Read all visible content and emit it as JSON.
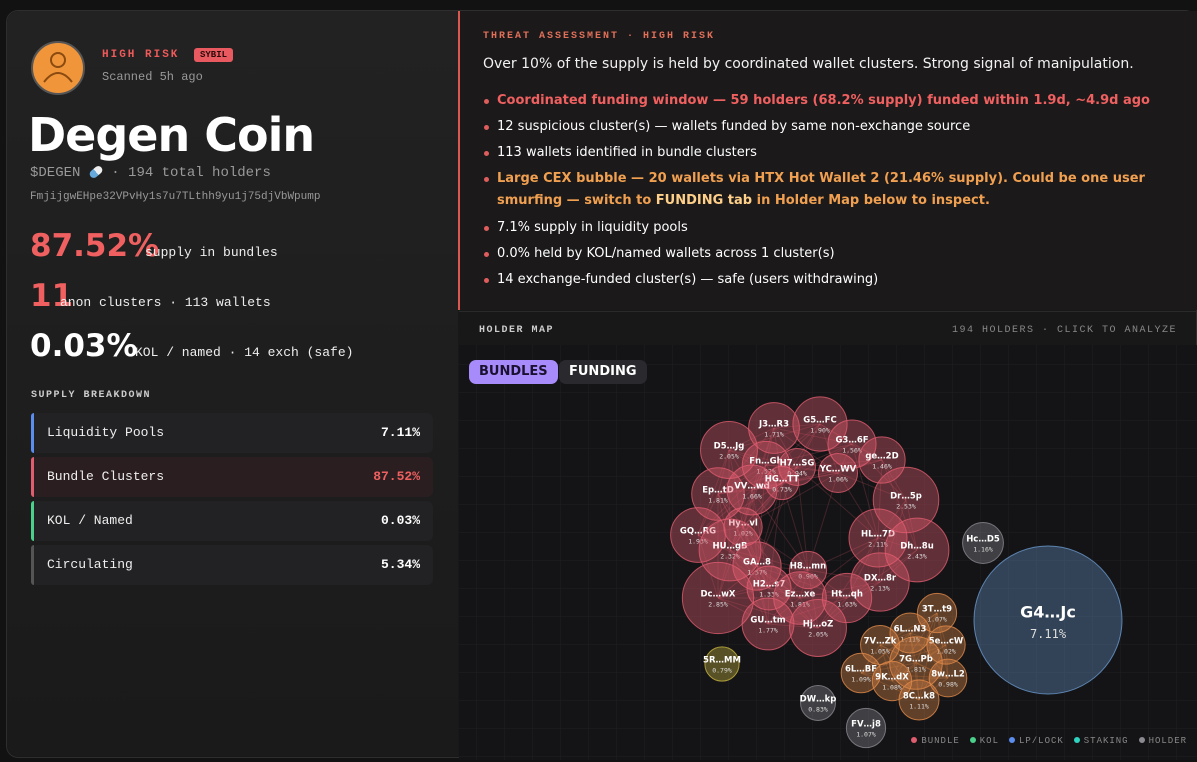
{
  "header": {
    "risk": "HIGH RISK",
    "badge": "SYBIL",
    "scanned": "Scanned 5h ago",
    "title": "Degen Coin",
    "ticker": "$DEGEN",
    "holders": "· 194 total holders",
    "address": "FmjijgwEHpe32VPvHy1s7u7TLthh9yu1j75djVbWpump"
  },
  "stats": [
    {
      "value": "87.52%",
      "label": "supply in bundles",
      "tone": "red"
    },
    {
      "value": "11",
      "label": "anon clusters · 113 wallets",
      "tone": "red"
    },
    {
      "value": "0.03%",
      "label": "KOL / named · 14 exch (safe)",
      "tone": "white"
    }
  ],
  "breakdown": {
    "title": "SUPPLY BREAKDOWN",
    "rows": [
      {
        "label": "Liquidity Pools",
        "value": "7.11%",
        "accent": "#5b8def",
        "tone": "white"
      },
      {
        "label": "Bundle Clusters",
        "value": "87.52%",
        "accent": "#e05d6f",
        "tone": "red"
      },
      {
        "label": "KOL / Named",
        "value": "0.03%",
        "accent": "#4ad08a",
        "tone": "white"
      },
      {
        "label": "Circulating",
        "value": "5.34%",
        "accent": "#555555",
        "tone": "white"
      }
    ]
  },
  "threat": {
    "label": "THREAT ASSESSMENT · HIGH RISK",
    "summary": "Over 10% of the supply is held by coordinated wallet clusters. Strong signal of manipulation.",
    "bullets": [
      {
        "tone": "red",
        "parts": [
          {
            "text": "Coordinated funding window — 59 holders (68.2% supply) funded within 1.9d, ~4.9d ago",
            "bold": false
          }
        ]
      },
      {
        "tone": "white",
        "parts": [
          {
            "text": "12 suspicious cluster(s) — wallets funded by same non-exchange source",
            "bold": false
          }
        ]
      },
      {
        "tone": "white",
        "parts": [
          {
            "text": "113 wallets identified in bundle clusters",
            "bold": false
          }
        ]
      },
      {
        "tone": "orange",
        "parts": [
          {
            "text": "Large CEX bubble — 20 wallets via HTX Hot Wallet 2 (21.46% supply). Could be one user smurfing — switch to ",
            "bold": false
          },
          {
            "text": "FUNDING tab",
            "bold": true
          },
          {
            "text": " in Holder Map below to inspect.",
            "bold": false
          }
        ]
      },
      {
        "tone": "white",
        "parts": [
          {
            "text": "7.1% supply in liquidity pools",
            "bold": false
          }
        ]
      },
      {
        "tone": "white",
        "parts": [
          {
            "text": "0.0% held by KOL/named wallets across 1 cluster(s)",
            "bold": false
          }
        ]
      },
      {
        "tone": "white",
        "parts": [
          {
            "text": "14 exchange-funded cluster(s) — safe (users withdrawing)",
            "bold": false
          }
        ]
      }
    ]
  },
  "holder_map": {
    "title": "HOLDER MAP",
    "meta": "194 HOLDERS · CLICK TO ANALYZE",
    "tabs": [
      "BUNDLES",
      "FUNDING"
    ],
    "kind_colors": {
      "bundle": "#e05d6f",
      "funding": "#e08a4a",
      "holder": "#8a8a90",
      "staking": "#c9b640",
      "lp": "#6a9ad0"
    },
    "legend": [
      {
        "label": "BUNDLE",
        "color": "#e05d6f"
      },
      {
        "label": "KOL",
        "color": "#4ad08a"
      },
      {
        "label": "LP/LOCK",
        "color": "#5b8def"
      },
      {
        "label": "STAKING",
        "color": "#2dd4bf"
      },
      {
        "label": "HOLDER",
        "color": "#8a8a90"
      }
    ],
    "bubbles": [
      {
        "label": "J3…R3",
        "value": 1.71,
        "value_label": "1.71%",
        "kind": "bundle"
      },
      {
        "label": "G5…FC",
        "value": 1.9,
        "value_label": "1.90%",
        "kind": "bundle"
      },
      {
        "label": "D5…Jg",
        "value": 2.05,
        "value_label": "2.05%",
        "kind": "bundle"
      },
      {
        "label": "G3…6F",
        "value": 1.56,
        "value_label": "1.56%",
        "kind": "bundle"
      },
      {
        "label": "ge…2D",
        "value": 1.46,
        "value_label": "1.46%",
        "kind": "bundle"
      },
      {
        "label": "Fn…Gh",
        "value": 1.52,
        "value_label": "1.52%",
        "kind": "bundle"
      },
      {
        "label": "H7…SG",
        "value": 0.94,
        "value_label": "0.94%",
        "kind": "bundle"
      },
      {
        "label": "YC…WV",
        "value": 1.06,
        "value_label": "1.06%",
        "kind": "bundle"
      },
      {
        "label": "Ep…tD",
        "value": 1.81,
        "value_label": "1.81%",
        "kind": "bundle"
      },
      {
        "label": "VV…wd",
        "value": 1.66,
        "value_label": "1.66%",
        "kind": "bundle"
      },
      {
        "label": "HG…TT",
        "value": 0.73,
        "value_label": "0.73%",
        "kind": "bundle"
      },
      {
        "label": "Dr…5p",
        "value": 2.53,
        "value_label": "2.53%",
        "kind": "bundle"
      },
      {
        "label": "GQ…RG",
        "value": 1.93,
        "value_label": "1.93%",
        "kind": "bundle"
      },
      {
        "label": "Hy…vl",
        "value": 1.02,
        "value_label": "1.02%",
        "kind": "bundle"
      },
      {
        "label": "HL…7D",
        "value": 2.11,
        "value_label": "2.11%",
        "kind": "bundle"
      },
      {
        "label": "HU…gB",
        "value": 2.32,
        "value_label": "2.32%",
        "kind": "bundle"
      },
      {
        "label": "Dh…8u",
        "value": 2.43,
        "value_label": "2.43%",
        "kind": "bundle"
      },
      {
        "label": "GA…8",
        "value": 1.57,
        "value_label": "1.57%",
        "kind": "bundle"
      },
      {
        "label": "H8…mn",
        "value": 0.96,
        "value_label": "0.96%",
        "kind": "bundle"
      },
      {
        "label": "DX…8r",
        "value": 2.13,
        "value_label": "2.13%",
        "kind": "bundle"
      },
      {
        "label": "H2…s7",
        "value": 1.33,
        "value_label": "1.33%",
        "kind": "bundle"
      },
      {
        "label": "Ez…xe",
        "value": 1.81,
        "value_label": "1.81%",
        "kind": "bundle"
      },
      {
        "label": "Ht…qh",
        "value": 1.63,
        "value_label": "1.63%",
        "kind": "bundle"
      },
      {
        "label": "Dc…wX",
        "value": 2.85,
        "value_label": "2.85%",
        "kind": "bundle"
      },
      {
        "label": "GU…tm",
        "value": 1.77,
        "value_label": "1.77%",
        "kind": "bundle"
      },
      {
        "label": "Hj…oZ",
        "value": 2.05,
        "value_label": "2.05%",
        "kind": "bundle"
      },
      {
        "label": "3T…t9",
        "value": 1.07,
        "value_label": "1.07%",
        "kind": "funding"
      },
      {
        "label": "6L…N3",
        "value": 1.11,
        "value_label": "1.11%",
        "kind": "funding"
      },
      {
        "label": "7V…Zk",
        "value": 1.05,
        "value_label": "1.05%",
        "kind": "funding"
      },
      {
        "label": "5e…cW",
        "value": 1.02,
        "value_label": "1.02%",
        "kind": "funding"
      },
      {
        "label": "7G…Pb",
        "value": 1.81,
        "value_label": "1.81%",
        "kind": "funding"
      },
      {
        "label": "6L…BF",
        "value": 1.09,
        "value_label": "1.09%",
        "kind": "funding"
      },
      {
        "label": "9K…dX",
        "value": 1.08,
        "value_label": "1.08%",
        "kind": "funding"
      },
      {
        "label": "8w…L2",
        "value": 0.98,
        "value_label": "0.98%",
        "kind": "funding"
      },
      {
        "label": "8C…k8",
        "value": 1.11,
        "value_label": "1.11%",
        "kind": "funding"
      },
      {
        "label": "Hc…D5",
        "value": 1.16,
        "value_label": "1.16%",
        "kind": "holder"
      },
      {
        "label": "DW…kp",
        "value": 0.83,
        "value_label": "0.83%",
        "kind": "holder"
      },
      {
        "label": "FV…j8",
        "value": 1.07,
        "value_label": "1.07%",
        "kind": "holder"
      },
      {
        "label": "5R…MM",
        "value": 0.79,
        "value_label": "0.79%",
        "kind": "staking"
      },
      {
        "label": "G4…Jc",
        "value": 7.11,
        "value_label": "7.11%",
        "kind": "lp"
      }
    ]
  }
}
